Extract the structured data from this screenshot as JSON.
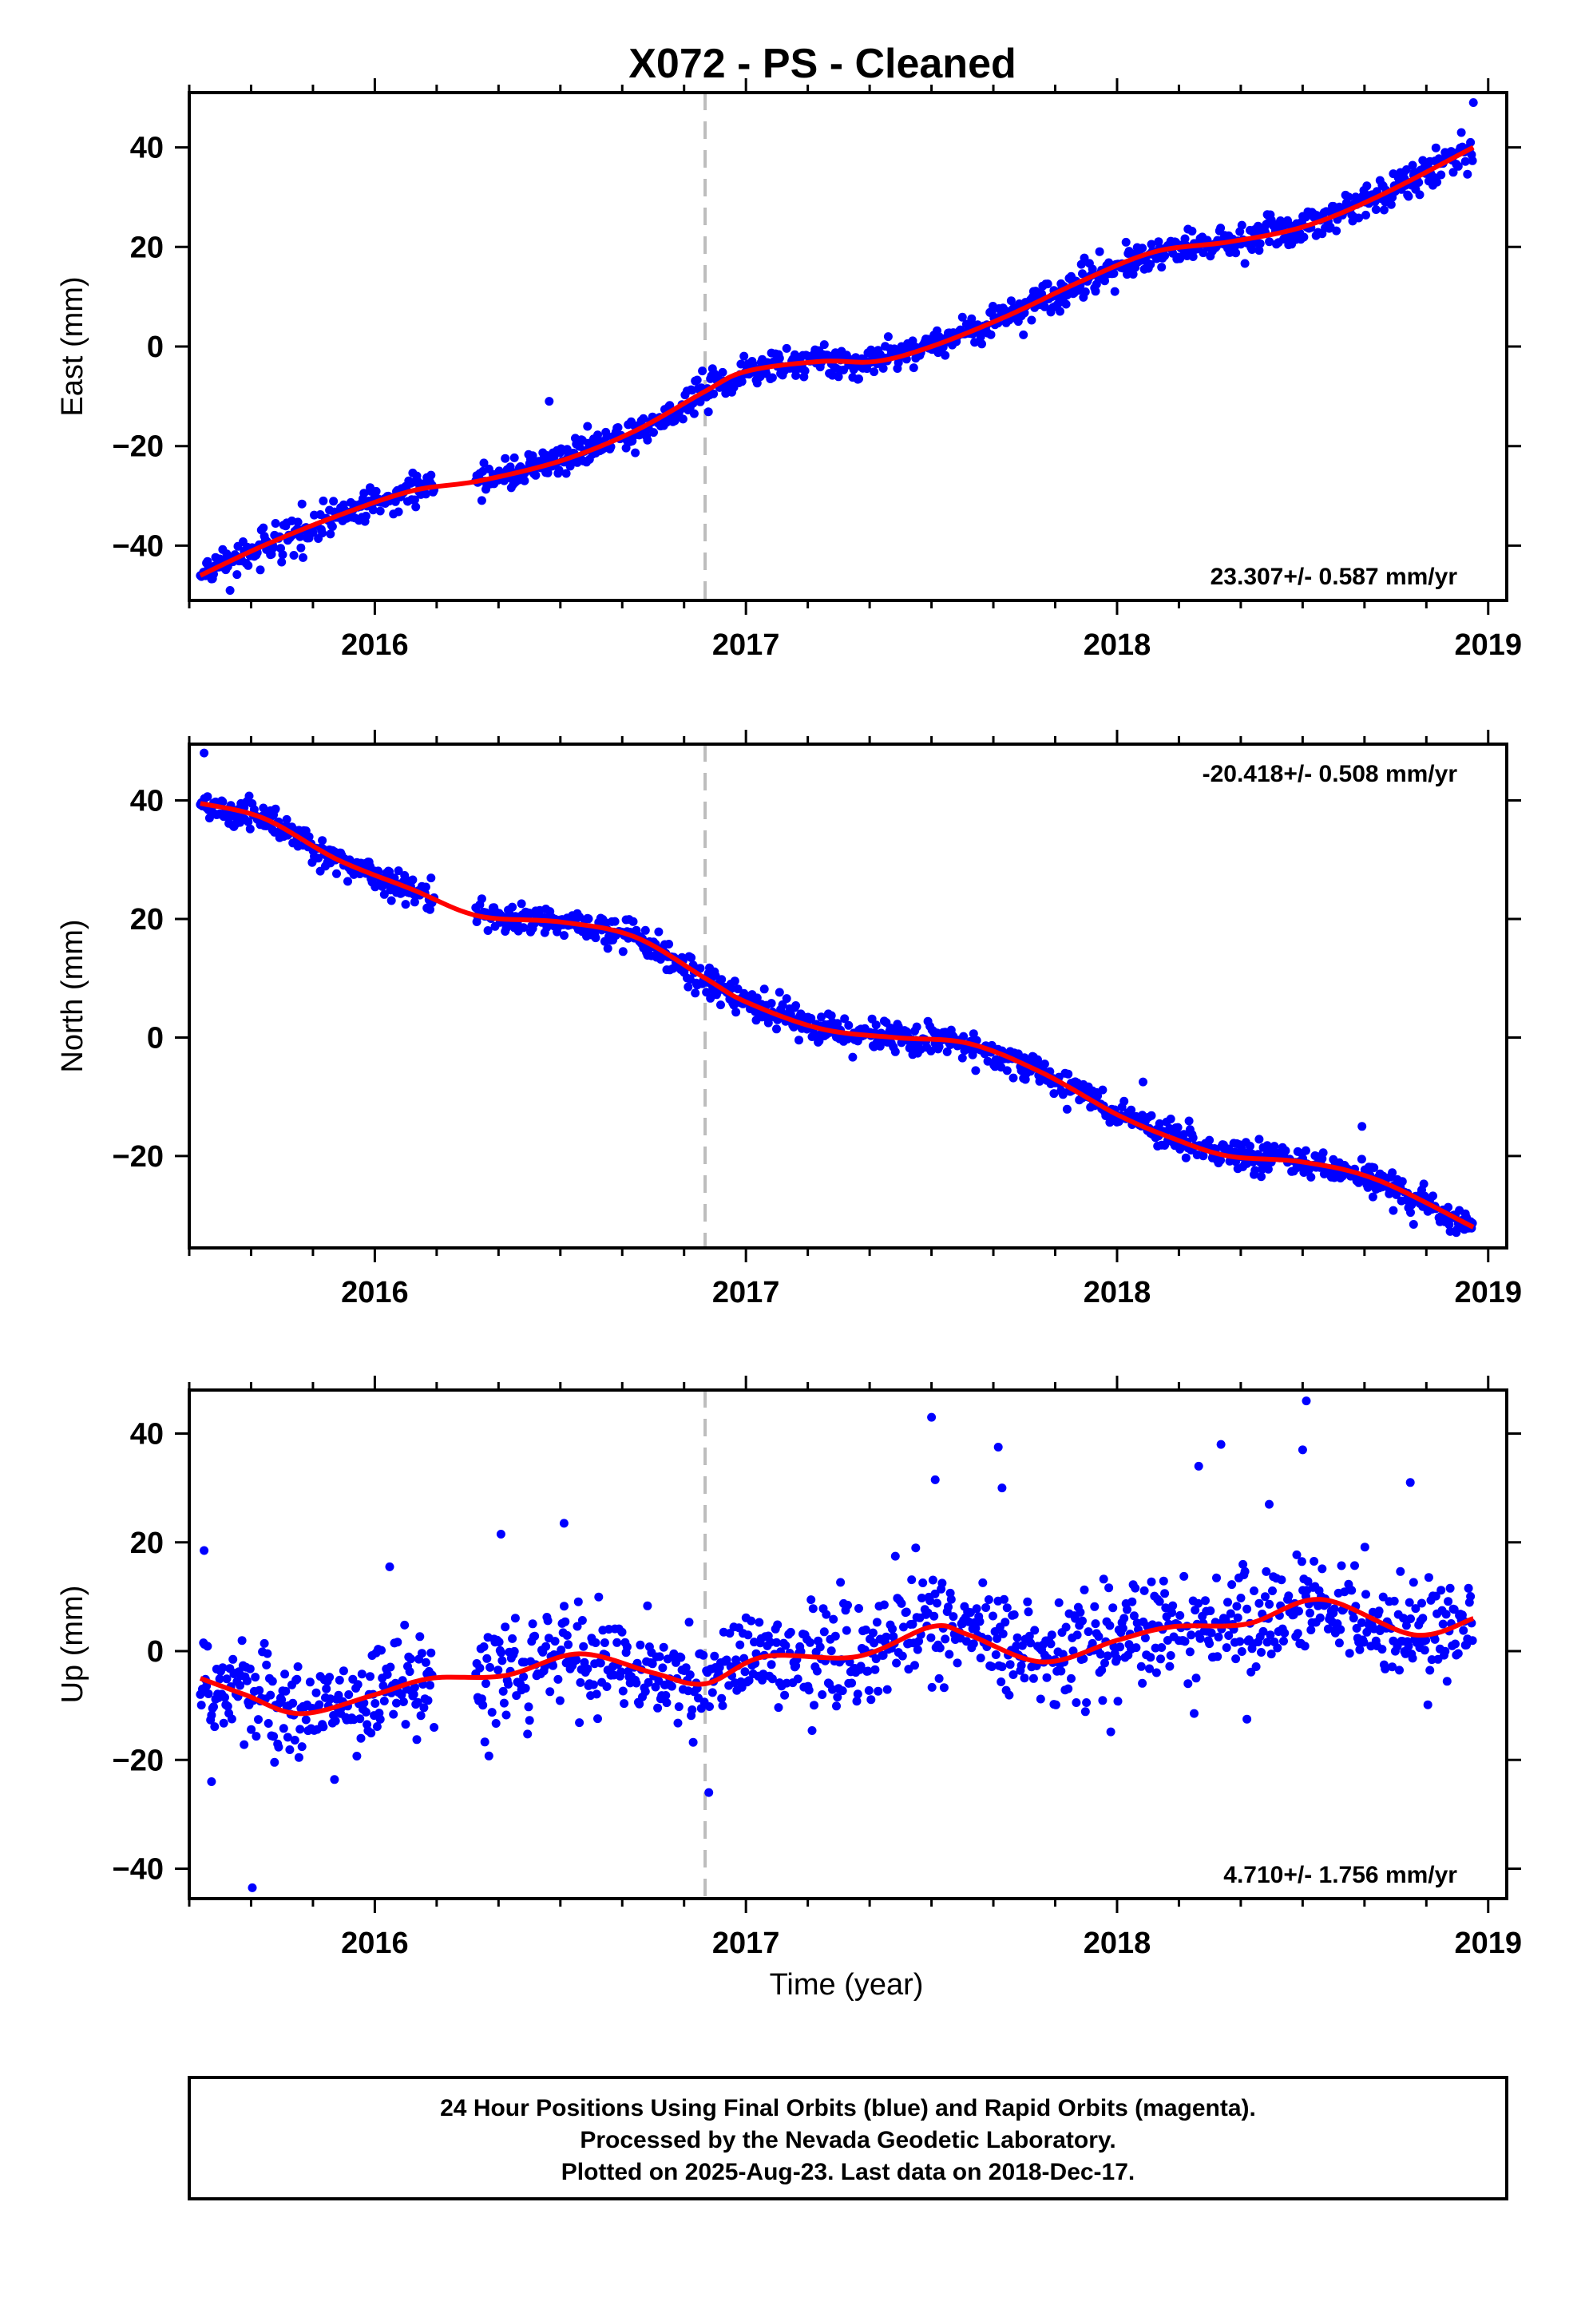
{
  "title": "X072  - PS - Cleaned",
  "colors": {
    "final_orbits": "#0000ff",
    "fit_line": "#ff0000",
    "event_line": "#bdbdbd"
  },
  "footer": {
    "line1": "24 Hour Positions Using Final Orbits (blue) and Rapid Orbits (magenta).",
    "line2": "Processed by the Nevada Geodetic Laboratory.",
    "line3": "Plotted on 2025-Aug-23. Last data on 2018-Dec-17."
  },
  "chart_data": [
    {
      "type": "scatter",
      "component": "east",
      "ylabel": "East (mm)",
      "xlabel": "",
      "xlim": [
        2015.5,
        2019.05
      ],
      "ylim": [
        -51,
        51
      ],
      "x_ticks": [
        2016,
        2017,
        2018,
        2019
      ],
      "y_ticks": [
        -40,
        -20,
        0,
        20,
        40
      ],
      "rate_label": "23.307+/- 0.587 mm/yr",
      "event_line_x": 2016.89,
      "data_range": [
        2015.53,
        2018.96
      ],
      "gaps": [
        [
          2016.16,
          2016.27
        ]
      ],
      "noise_sd": 1.6,
      "outliers": [
        {
          "x": 2016.47,
          "y": -11
        },
        {
          "x": 2018.96,
          "y": 49
        },
        {
          "x": 2015.61,
          "y": -49
        }
      ],
      "fit": {
        "x": [
          2015.53,
          2015.7,
          2015.9,
          2016.1,
          2016.28,
          2016.5,
          2016.7,
          2016.89,
          2017.0,
          2017.2,
          2017.35,
          2017.5,
          2017.7,
          2017.9,
          2018.1,
          2018.3,
          2018.5,
          2018.7,
          2018.96
        ],
        "y": [
          -46,
          -40,
          -34,
          -29,
          -27,
          -23,
          -17,
          -9,
          -5,
          -3,
          -3,
          0,
          6,
          13,
          19,
          21,
          24,
          30,
          40
        ]
      }
    },
    {
      "type": "scatter",
      "component": "north",
      "ylabel": "North (mm)",
      "xlabel": "",
      "xlim": [
        2015.5,
        2019.05
      ],
      "ylim": [
        -35.5,
        49.5
      ],
      "x_ticks": [
        2016,
        2017,
        2018,
        2019
      ],
      "y_ticks": [
        -20,
        0,
        20,
        40
      ],
      "rate_label": "-20.418+/- 0.508 mm/yr",
      "event_line_x": 2016.89,
      "data_range": [
        2015.53,
        2018.96
      ],
      "gaps": [
        [
          2016.16,
          2016.27
        ]
      ],
      "noise_sd": 1.3,
      "outliers": [
        {
          "x": 2015.54,
          "y": 48
        },
        {
          "x": 2018.07,
          "y": -7.5
        },
        {
          "x": 2018.66,
          "y": -15
        }
      ],
      "fit": {
        "x": [
          2015.53,
          2015.7,
          2015.9,
          2016.1,
          2016.28,
          2016.5,
          2016.7,
          2016.89,
          2017.0,
          2017.2,
          2017.4,
          2017.6,
          2017.8,
          2018.0,
          2018.15,
          2018.3,
          2018.5,
          2018.7,
          2018.96
        ],
        "y": [
          39.5,
          37,
          30,
          25,
          20.5,
          19.5,
          17,
          10,
          6,
          1.5,
          0,
          -1,
          -6,
          -13,
          -17,
          -20,
          -21,
          -24,
          -32
        ]
      }
    },
    {
      "type": "scatter",
      "component": "up",
      "ylabel": "Up (mm)",
      "xlabel": "Time (year)",
      "xlim": [
        2015.5,
        2019.05
      ],
      "ylim": [
        -45.5,
        48
      ],
      "x_ticks": [
        2016,
        2017,
        2018,
        2019
      ],
      "y_ticks": [
        -40,
        -20,
        0,
        20,
        40
      ],
      "rate_label": "4.710+/- 1.756 mm/yr",
      "event_line_x": 2016.89,
      "data_range": [
        2015.53,
        2018.96
      ],
      "gaps": [
        [
          2016.16,
          2016.27
        ]
      ],
      "noise_sd": 4.8,
      "outliers": [
        {
          "x": 2015.54,
          "y": 18.5
        },
        {
          "x": 2015.56,
          "y": -24
        },
        {
          "x": 2015.67,
          "y": -43.5
        },
        {
          "x": 2016.04,
          "y": 15.5
        },
        {
          "x": 2016.34,
          "y": 21.5
        },
        {
          "x": 2016.51,
          "y": 23.5
        },
        {
          "x": 2016.9,
          "y": -26
        },
        {
          "x": 2017.5,
          "y": 43
        },
        {
          "x": 2017.51,
          "y": 31.5
        },
        {
          "x": 2017.69,
          "y": 30
        },
        {
          "x": 2017.68,
          "y": 37.5
        },
        {
          "x": 2018.22,
          "y": 34
        },
        {
          "x": 2018.28,
          "y": 38
        },
        {
          "x": 2018.41,
          "y": 27
        },
        {
          "x": 2018.51,
          "y": 46
        },
        {
          "x": 2018.5,
          "y": 37
        },
        {
          "x": 2018.79,
          "y": 31
        },
        {
          "x": 2018.35,
          "y": -12.5
        }
      ],
      "fit": {
        "x": [
          2015.53,
          2015.65,
          2015.8,
          2016.0,
          2016.15,
          2016.35,
          2016.55,
          2016.75,
          2016.89,
          2017.05,
          2017.3,
          2017.5,
          2017.6,
          2017.8,
          2018.0,
          2018.15,
          2018.35,
          2018.55,
          2018.8,
          2018.96
        ],
        "y": [
          -5,
          -8,
          -11.5,
          -8,
          -5,
          -4.5,
          -0.5,
          -4,
          -6,
          -1,
          -1,
          4.5,
          3,
          -2,
          2,
          4.5,
          5,
          9.5,
          3,
          6
        ]
      }
    }
  ]
}
